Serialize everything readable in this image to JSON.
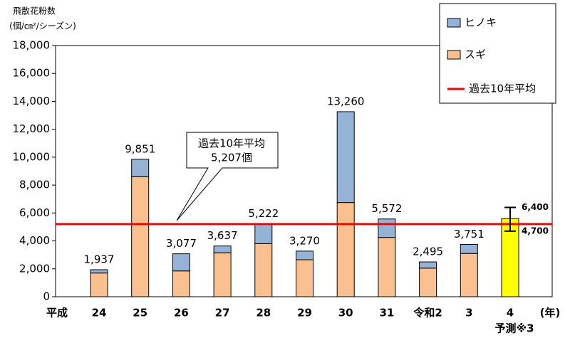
{
  "chart_data": {
    "type": "stacked-bar",
    "y_label": [
      "飛散花粉数",
      "(個/㎝²/シーズン)"
    ],
    "x_prefix": "平成",
    "x_suffix": "(年)",
    "forecast_note": "予測※3",
    "categories": [
      "24",
      "25",
      "26",
      "27",
      "28",
      "29",
      "30",
      "31",
      "令和2",
      "3",
      "4"
    ],
    "series": [
      {
        "name": "スギ",
        "color": "#fac090",
        "values": [
          1700,
          8600,
          1850,
          3150,
          3800,
          2650,
          6750,
          4250,
          2050,
          3100,
          null
        ]
      },
      {
        "name": "ヒノキ",
        "color": "#95b3d7",
        "values": [
          237,
          1251,
          1227,
          487,
          1422,
          620,
          6510,
          1322,
          445,
          651,
          null
        ]
      }
    ],
    "totals": [
      1937,
      9851,
      3077,
      3637,
      5222,
      3270,
      13260,
      5572,
      2495,
      3751,
      null
    ],
    "total_labels": [
      "1,937",
      "9,851",
      "3,077",
      "3,637",
      "5,222",
      "3,270",
      "13,260",
      "5,572",
      "2,495",
      "3,751",
      null
    ],
    "forecast": {
      "value": 5600,
      "low": 4700,
      "high": 6400,
      "low_label": "4,700",
      "high_label": "6,400",
      "color": "#ffff00"
    },
    "reference_line": {
      "name": "過去10年平均",
      "value": 5207,
      "color": "#ff0000"
    },
    "annotation": [
      "過去10年平均",
      "5,207個"
    ],
    "ylim": [
      0,
      18000
    ],
    "yticks": [
      0,
      {
        "value": 2000,
        "label": "2,000"
      },
      {
        "value": 4000,
        "label": "4,000"
      },
      {
        "value": 6000,
        "label": "6,000"
      },
      {
        "value": 8000,
        "label": "8,000"
      },
      {
        "value": 10000,
        "label": "10,000"
      },
      {
        "value": 12000,
        "label": "12,000"
      },
      {
        "value": 14000,
        "label": "14,000"
      },
      {
        "value": 16000,
        "label": "16,000"
      },
      {
        "value": 18000,
        "label": "18,000"
      }
    ],
    "legend": "top-right"
  }
}
